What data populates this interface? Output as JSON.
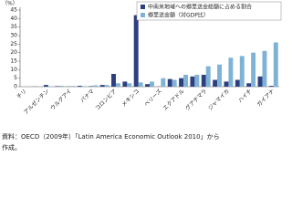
{
  "chart_data": {
    "type": "bar",
    "y_label": "（%）",
    "categories": [
      "チリ",
      null,
      "アルゼンチン",
      null,
      "ウルグアイ",
      null,
      "パナマ",
      null,
      "コロンビア",
      null,
      "メキシコ",
      null,
      "ベリーズ",
      null,
      "エクアドル",
      null,
      "グアテマラ",
      null,
      "ジャマイカ",
      null,
      "ハイチ",
      null,
      "ガイアナ"
    ],
    "series": [
      {
        "name": "中南米地域への郷里送金総額に占める割合",
        "color": "#2e3f7f",
        "values": [
          0,
          0.1,
          1,
          0.3,
          0.1,
          0.5,
          0.3,
          1,
          7.5,
          3,
          42,
          1.5,
          0.1,
          4.5,
          5,
          6,
          7,
          4,
          3,
          4,
          2,
          6,
          0.5
        ]
      },
      {
        "name": "郷里送金額（対GDP比）",
        "color": "#7fb3d5",
        "values": [
          0,
          0,
          0.2,
          0.5,
          0.4,
          0.3,
          0.8,
          1,
          2,
          2,
          2.5,
          3,
          5,
          4,
          7,
          7,
          12,
          13,
          17,
          18,
          20,
          21,
          26
        ]
      }
    ],
    "ylim": [
      0,
      45
    ],
    "yticks": [
      0,
      5,
      10,
      15,
      20,
      25,
      30,
      35,
      40,
      45
    ],
    "legend": "top-right",
    "note": [
      "資料：OECD（2009年）「Latin America Economic Outlook 2010」から",
      "作成。"
    ]
  }
}
